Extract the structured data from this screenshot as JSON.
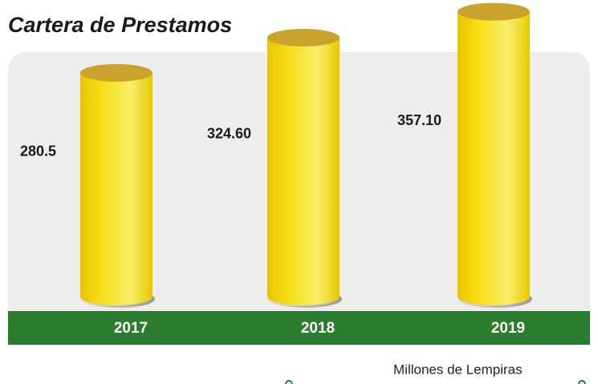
{
  "chart_data": {
    "type": "bar",
    "title": "Cartera de Prestamos",
    "categories": [
      "2017",
      "2018",
      "2019"
    ],
    "values": [
      280.5,
      324.6,
      357.1
    ],
    "value_labels": [
      "280.5",
      "324.60",
      "357.10"
    ],
    "color": "#f2d500",
    "note": "Millones de Lempiras"
  }
}
